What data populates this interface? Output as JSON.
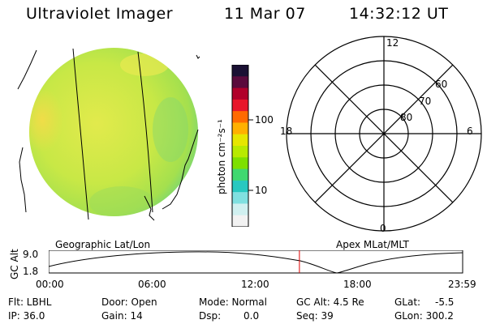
{
  "header": {
    "title": "Ultraviolet Imager",
    "date": "11 Mar 07",
    "time": "14:32:12 UT"
  },
  "colorbar": {
    "label": "photon cm⁻²s⁻¹",
    "ticks": [
      "100",
      "10"
    ],
    "colors": [
      "#1a1033",
      "#5a0a3c",
      "#b0002a",
      "#e8162a",
      "#ff6a00",
      "#ffb000",
      "#e6e600",
      "#b8ea00",
      "#7ee000",
      "#40d870",
      "#28c8c0",
      "#80e0e0",
      "#d0f0f0",
      "#f2f2f2"
    ]
  },
  "polar_grid": {
    "mlt_labels": [
      "12",
      "18",
      "6",
      "0"
    ],
    "lat_labels": [
      "60",
      "70",
      "80"
    ]
  },
  "timeline": {
    "axis_label": "GC Alt",
    "y_ticks": [
      "9.0",
      "1.8"
    ],
    "x_ticks": [
      "00:00",
      "06:00",
      "12:00",
      "18:00",
      "23:59"
    ],
    "left_caption": "Geographic Lat/Lon",
    "right_caption": "Apex MLat/MLT",
    "marker_time_hours": 14.536,
    "marker_color": "#e00000"
  },
  "info": {
    "row1": [
      "Flt: LBHL",
      "Door: Open",
      "Mode: Normal",
      "GC Alt: 4.5 Re",
      "GLat:",
      "-5.5"
    ],
    "row2": [
      "IP: 36.0",
      "Gain: 14",
      "Dsp:",
      "0.0",
      "Seq: 39",
      "GLon: 300.2"
    ]
  },
  "colors": {
    "disk_base": "#cfe84a",
    "disk_edge": "#78d878"
  }
}
